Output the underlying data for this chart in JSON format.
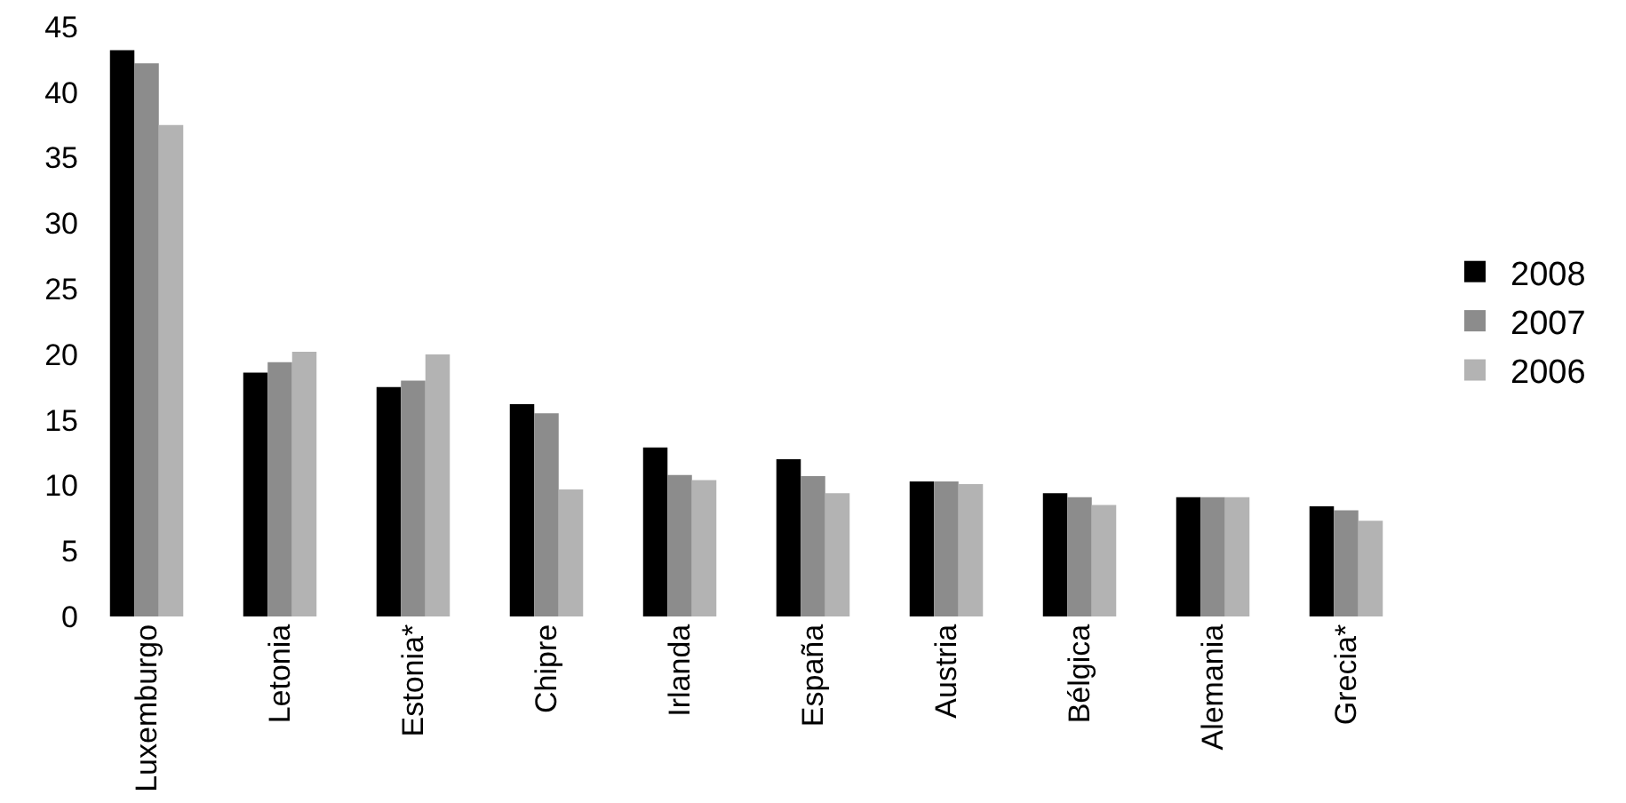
{
  "chart_data": {
    "type": "bar",
    "categories": [
      "Luxemburgo",
      "Letonia",
      "Estonia*",
      "Chipre",
      "Irlanda",
      "España",
      "Austria",
      "Bélgica",
      "Alemania",
      "Grecia*"
    ],
    "series": [
      {
        "name": "2008",
        "color": "#000000",
        "values": [
          43.2,
          18.6,
          17.5,
          16.2,
          12.9,
          12.0,
          10.3,
          9.4,
          9.1,
          8.4
        ]
      },
      {
        "name": "2007",
        "color": "#8c8c8c",
        "values": [
          42.2,
          19.4,
          18.0,
          15.5,
          10.8,
          10.7,
          10.3,
          9.1,
          9.1,
          8.1
        ]
      },
      {
        "name": "2006",
        "color": "#b3b3b3",
        "values": [
          37.5,
          20.2,
          20.0,
          9.7,
          10.4,
          9.4,
          10.1,
          8.5,
          9.1,
          7.3
        ]
      }
    ],
    "ylim": [
      0,
      45
    ],
    "yticks": [
      0,
      5,
      10,
      15,
      20,
      25,
      30,
      35,
      40,
      45
    ],
    "grid": false,
    "legend": "right"
  }
}
